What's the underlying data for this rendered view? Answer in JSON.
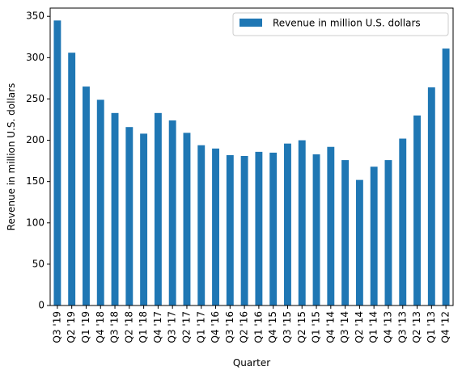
{
  "colors": {
    "bar": "#1f77b4",
    "axis": "#000000",
    "legend_border": "#cccccc"
  },
  "chart_data": {
    "type": "bar",
    "xlabel": "Quarter",
    "ylabel": "Revenue in million U.S. dollars",
    "ylim": [
      0,
      360
    ],
    "yticks": [
      0,
      50,
      100,
      150,
      200,
      250,
      300,
      350
    ],
    "grid": false,
    "legend_position": "top-right",
    "categories": [
      "Q3 '19",
      "Q2 '19",
      "Q1 '19",
      "Q4 '18",
      "Q3 '18",
      "Q2 '18",
      "Q1 '18",
      "Q4 '17",
      "Q3 '17",
      "Q2 '17",
      "Q1 '17",
      "Q4 '16",
      "Q3 '16",
      "Q2 '16",
      "Q1 '16",
      "Q4 '15",
      "Q3 '15",
      "Q2 '15",
      "Q1 '15",
      "Q4 '14",
      "Q3 '14",
      "Q2 '14",
      "Q1 '14",
      "Q4 '13",
      "Q3 '13",
      "Q2 '13",
      "Q1 '13",
      "Q4 '12"
    ],
    "series": [
      {
        "name": "Revenue in million U.S. dollars",
        "values": [
          345,
          306,
          265,
          249,
          233,
          216,
          208,
          233,
          224,
          209,
          194,
          190,
          182,
          181,
          186,
          185,
          196,
          200,
          183,
          192,
          176,
          152,
          168,
          176,
          202,
          230,
          264,
          311
        ]
      }
    ]
  }
}
